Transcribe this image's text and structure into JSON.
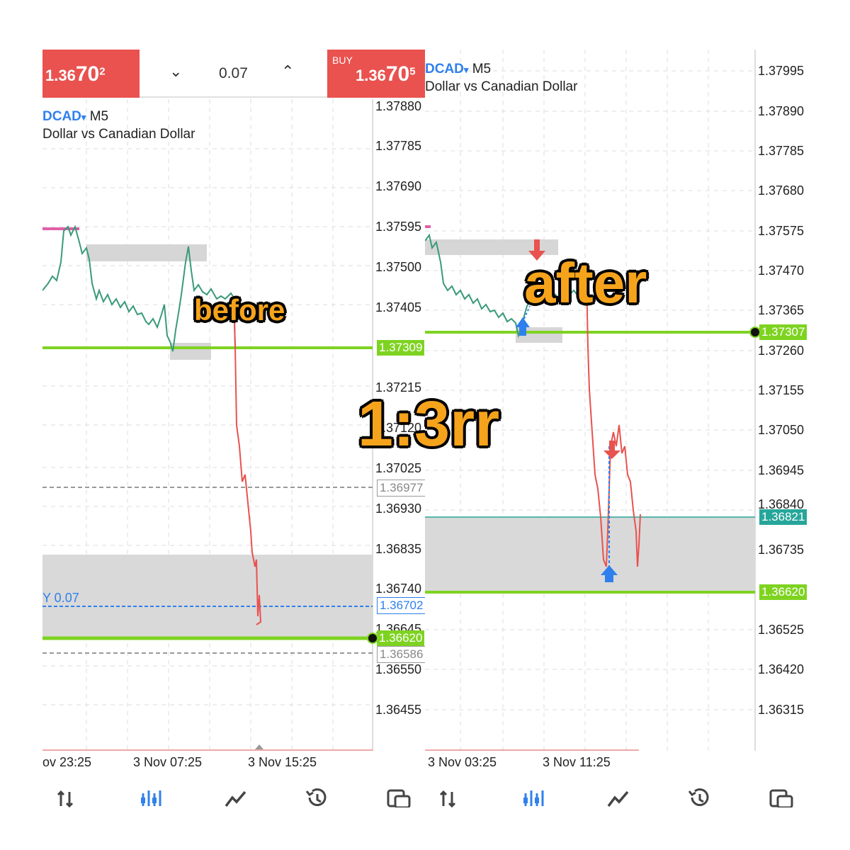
{
  "left": {
    "sell": {
      "price_main": "1.36",
      "price_big": "70",
      "price_sup": "2"
    },
    "volume": "0.07",
    "buy": {
      "label": "BUY",
      "price_main": "1.36",
      "price_big": "70",
      "price_sup": "5"
    },
    "symbol": "DCAD",
    "symbol_arrow": "▾",
    "timeframe": "M5",
    "description": "Dollar vs Canadian Dollar",
    "y_ticks": [
      "1.37880",
      "1.37785",
      "1.37690",
      "1.37595",
      "1.37500",
      "1.37405",
      "1.37215",
      "1.37120",
      "1.37025",
      "1.36930",
      "1.36835",
      "1.36740",
      "1.36645",
      "1.36550",
      "1.36455"
    ],
    "x_ticks": [
      "ov 23:25",
      "3 Nov 07:25",
      "3 Nov 15:25"
    ],
    "price_tags": {
      "green_top": "1.37309",
      "grey_top": "1.36977",
      "blue": "1.36702",
      "green_bottom": "1.36620",
      "grey_bottom": "1.36586"
    },
    "order_label": "Y 0.07",
    "overlay": "before"
  },
  "right": {
    "symbol": "DCAD",
    "symbol_arrow": "▾",
    "timeframe": "M5",
    "description": "Dollar vs Canadian Dollar",
    "y_ticks": [
      "1.37995",
      "1.37890",
      "1.37785",
      "1.37680",
      "1.37575",
      "1.37470",
      "1.37365",
      "1.37260",
      "1.37155",
      "1.37050",
      "1.36945",
      "1.36840",
      "1.36735",
      "1.36525",
      "1.36420",
      "1.36315"
    ],
    "x_ticks": [
      "3 Nov 03:25",
      "3 Nov 11:25"
    ],
    "price_tags": {
      "green_top": "1.37307",
      "teal": "1.36821",
      "green_bottom": "1.36620"
    },
    "overlay": "after"
  },
  "center_overlay": "1:3rr",
  "nav_icons": [
    "quotes-icon",
    "chart-icon",
    "trade-icon",
    "history-icon",
    "messages-icon"
  ],
  "colors": {
    "sell": "#e9524f",
    "green_line": "#7ed321",
    "symbol_blue": "#2f80ed",
    "overlay_text": "#f6a31c",
    "candle_red": "#e9524f",
    "candle_green": "#26a69a"
  }
}
